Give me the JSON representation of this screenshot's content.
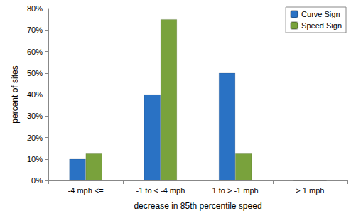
{
  "chart_data": {
    "type": "bar",
    "x_label": "decrease in 85th percentile speed",
    "y_label": "percent of sites",
    "categories": [
      "-4 mph <=",
      "-1 to < -4 mph",
      "1 to > -1 mph",
      "> 1 mph"
    ],
    "series": [
      {
        "name": "Curve Sign",
        "color": "#2a72c4",
        "values": [
          10,
          40,
          50,
          0
        ]
      },
      {
        "name": "Speed Sign",
        "color": "#79a23c",
        "values": [
          12.5,
          75,
          12.5,
          0
        ]
      }
    ],
    "ylim": [
      0,
      80
    ],
    "yticks": [
      {
        "value": 0,
        "label": "0%"
      },
      {
        "value": 10,
        "label": "10%"
      },
      {
        "value": 20,
        "label": "20%"
      },
      {
        "value": 30,
        "label": "30%"
      },
      {
        "value": 40,
        "label": "40%"
      },
      {
        "value": 50,
        "label": "50%"
      },
      {
        "value": 60,
        "label": "60%"
      },
      {
        "value": 70,
        "label": "70%"
      },
      {
        "value": 80,
        "label": "80%"
      }
    ],
    "grid": false,
    "legend": "top-right"
  }
}
